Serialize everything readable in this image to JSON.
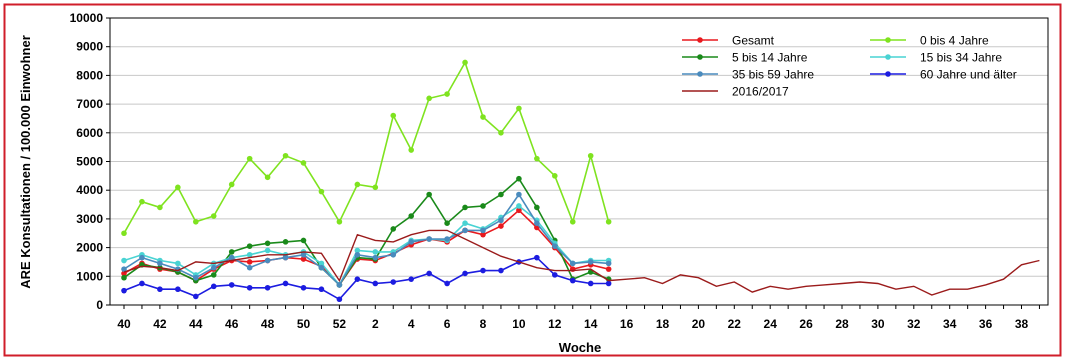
{
  "chart_data": {
    "type": "line",
    "xlabel": "Woche",
    "ylabel": "ARE Konsultationen / 100.000 Einwohner",
    "ylim": [
      0,
      10000
    ],
    "yticks": [
      0,
      1000,
      2000,
      3000,
      4000,
      5000,
      6000,
      7000,
      8000,
      9000,
      10000
    ],
    "x_weeks": [
      40,
      41,
      42,
      43,
      44,
      45,
      46,
      47,
      48,
      49,
      50,
      51,
      52,
      1,
      2,
      3,
      4,
      5,
      6,
      7,
      8,
      9,
      10,
      11,
      12,
      13,
      14,
      15,
      16,
      17,
      18,
      19,
      20,
      21,
      22,
      23,
      24,
      25,
      26,
      27,
      28,
      29,
      30,
      31,
      32,
      33,
      34,
      35,
      36,
      37,
      38,
      39
    ],
    "x_tick_labels": [
      "40",
      "42",
      "44",
      "46",
      "48",
      "50",
      "52",
      "2",
      "4",
      "6",
      "8",
      "10",
      "12",
      "14",
      "16",
      "18",
      "20",
      "22",
      "24",
      "26",
      "28",
      "30",
      "32",
      "34",
      "36",
      "38"
    ],
    "grid": true,
    "legend_position": "top-right",
    "series": [
      {
        "name": "Gesamt",
        "color": "#e8191e",
        "marker": true,
        "values": [
          1100,
          1450,
          1250,
          1150,
          850,
          1250,
          1550,
          1500,
          1550,
          1650,
          1600,
          1350,
          700,
          1600,
          1550,
          1800,
          2100,
          2300,
          2200,
          2600,
          2450,
          2750,
          3300,
          2700,
          2000,
          1250,
          1400,
          1250
        ]
      },
      {
        "name": "0 bis 4 Jahre",
        "color": "#7fe31f",
        "marker": true,
        "values": [
          2500,
          3600,
          3400,
          4100,
          2900,
          3100,
          4200,
          5100,
          4450,
          5200,
          4950,
          3950,
          2900,
          4200,
          4100,
          6600,
          5400,
          7200,
          7350,
          8450,
          6550,
          6000,
          6850,
          5100,
          4500,
          2900,
          5200,
          2900
        ]
      },
      {
        "name": "5 bis 14 Jahre",
        "color": "#1a8a1a",
        "marker": true,
        "values": [
          950,
          1400,
          1300,
          1150,
          850,
          1050,
          1850,
          2050,
          2150,
          2200,
          2250,
          1300,
          700,
          1650,
          1600,
          2650,
          3100,
          3850,
          2850,
          3400,
          3450,
          3850,
          4400,
          3400,
          2250,
          900,
          1150,
          900
        ]
      },
      {
        "name": "15 bis 34 Jahre",
        "color": "#49d3d3",
        "marker": true,
        "values": [
          1550,
          1750,
          1550,
          1450,
          1050,
          1450,
          1650,
          1750,
          1900,
          1750,
          1850,
          1450,
          700,
          1900,
          1850,
          1850,
          2250,
          2300,
          2250,
          2850,
          2650,
          3050,
          3450,
          2950,
          2150,
          1450,
          1550,
          1550
        ]
      },
      {
        "name": "35 bis 59 Jahre",
        "color": "#4a8bbd",
        "marker": true,
        "values": [
          1250,
          1650,
          1450,
          1250,
          950,
          1300,
          1650,
          1300,
          1550,
          1650,
          1750,
          1300,
          700,
          1750,
          1650,
          1750,
          2200,
          2300,
          2300,
          2600,
          2600,
          2950,
          3850,
          2850,
          2050,
          1450,
          1500,
          1450
        ]
      },
      {
        "name": "60 Jahre und älter",
        "color": "#1c1ce0",
        "marker": true,
        "values": [
          500,
          750,
          550,
          550,
          300,
          650,
          700,
          600,
          600,
          750,
          600,
          550,
          200,
          900,
          750,
          800,
          900,
          1100,
          750,
          1100,
          1200,
          1200,
          1500,
          1650,
          1050,
          850,
          750,
          750
        ]
      },
      {
        "name": "2016/2017",
        "color": "#9b1b1b",
        "marker": false,
        "values": [
          1150,
          1350,
          1300,
          1200,
          1500,
          1450,
          1550,
          1650,
          1750,
          1750,
          1850,
          1800,
          850,
          2450,
          2250,
          2200,
          2450,
          2600,
          2600,
          2300,
          2000,
          1700,
          1500,
          1300,
          1200,
          1200,
          1250,
          850,
          900,
          950,
          750,
          1050,
          950,
          650,
          800,
          450,
          650,
          550,
          650,
          700,
          750,
          800,
          750,
          550,
          650,
          350,
          550,
          550,
          700,
          900,
          1400,
          1550
        ]
      }
    ]
  }
}
